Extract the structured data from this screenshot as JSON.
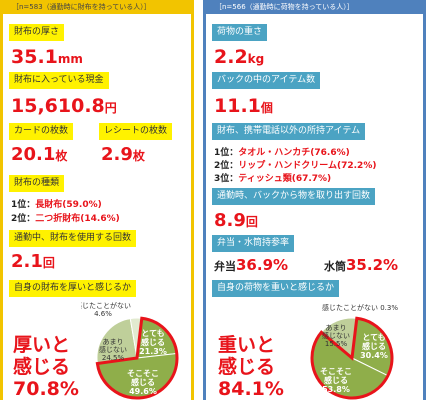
{
  "left": {
    "n_header": "［n=583（通勤時に財布を持っている人）］",
    "thickness_label": "財布の厚さ",
    "thickness_value": "35.1",
    "thickness_unit": "mm",
    "cash_label": "財布に入っている現金",
    "cash_value": "15,610.8",
    "cash_unit": "円",
    "cards_label": "カードの枚数",
    "cards_value": "20.1",
    "cards_unit": "枚",
    "receipts_label": "レシートの枚数",
    "receipts_value": "2.9",
    "receipts_unit": "枚",
    "type_label": "財布の種類",
    "type_rank1_prefix": "1位：",
    "type_rank1_text": "長財布(59.0%)",
    "type_rank2_prefix": "2位：",
    "type_rank2_text": "二つ折財布(14.6%)",
    "usage_label": "通勤中、財布を使用する回数",
    "usage_value": "2.1",
    "usage_unit": "回",
    "feel_label": "自身の財布を厚いと感じるか",
    "verdict_line1": "厚いと",
    "verdict_line2": "感じる",
    "verdict_value": "70.8%",
    "pie": {
      "slices": [
        {
          "label_lines": [
            "とても",
            "感じる",
            "21.3%"
          ],
          "value": 21.3,
          "color": "#8fae4a"
        },
        {
          "label_lines": [
            "そこそこ",
            "感じる",
            "49.6%"
          ],
          "value": 49.6,
          "color": "#8fae4a"
        },
        {
          "label_lines": [
            "あまり",
            "感じない",
            "24.5%"
          ],
          "value": 24.5,
          "color": "#bfcf9a"
        },
        {
          "label_lines": [
            "感じたことがない",
            "4.6%"
          ],
          "value": 4.6,
          "color": "#e2ead0"
        }
      ]
    }
  },
  "right": {
    "n_header": "［n=566（通勤時に荷物を持っている人）］",
    "weight_label": "荷物の重さ",
    "weight_value": "2.2",
    "weight_unit": "kg",
    "items_label": "バックの中のアイテム数",
    "items_value": "11.1",
    "items_unit": "個",
    "possessions_label": "財布、携帯電話以外の所持アイテム",
    "rank1_prefix": "1位：",
    "rank1_text": "タオル・ハンカチ(76.6%)",
    "rank2_prefix": "2位：",
    "rank2_text": "リップ・ハンドクリーム(72.2%)",
    "rank3_prefix": "3位：",
    "rank3_text": "ティッシュ類(67.7%)",
    "takeout_label": "通勤時、バックから物を取り出す回数",
    "takeout_value": "8.9",
    "takeout_unit": "回",
    "lunch_label": "弁当・水筒持参率",
    "bento_label": "弁当",
    "bento_value": "36.9%",
    "bottle_label": "水筒",
    "bottle_value": "35.2%",
    "feel_label": "自身の荷物を重いと感じるか",
    "verdict_line1": "重いと",
    "verdict_line2": "感じる",
    "verdict_value": "84.1%",
    "pie": {
      "slices": [
        {
          "label_lines": [
            "とても",
            "感じる",
            "30.4%"
          ],
          "value": 30.4,
          "color": "#8fae4a"
        },
        {
          "label_lines": [
            "そこそこ",
            "感じる",
            "53.8%"
          ],
          "value": 53.8,
          "color": "#8fae4a"
        },
        {
          "label_lines": [
            "あまり",
            "感じない",
            "15.5%"
          ],
          "value": 15.5,
          "color": "#bfcf9a"
        },
        {
          "label_lines": [
            "感じたことがない 0.3%"
          ],
          "value": 0.3,
          "color": "#e2ead0"
        }
      ]
    }
  }
}
